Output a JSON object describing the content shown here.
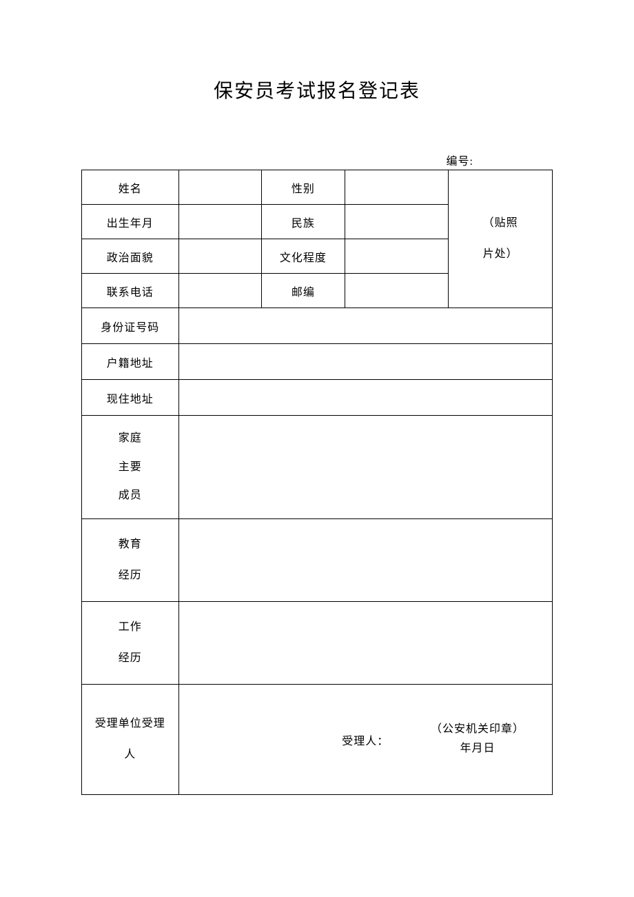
{
  "title": "保安员考试报名登记表",
  "serial_label": "编号:",
  "labels": {
    "name": "姓名",
    "gender": "性别",
    "birth": "出生年月",
    "ethnicity": "民族",
    "political": "政治面貌",
    "education": "文化程度",
    "phone": "联系电话",
    "zip": "邮编",
    "id_number": "身份证号码",
    "household": "户籍地址",
    "current_addr": "现住地址",
    "family_l1": "家庭",
    "family_l2": "主要",
    "family_l3": "成员",
    "edu_l1": "教育",
    "edu_l2": "经历",
    "work_l1": "工作",
    "work_l2": "经历",
    "accept_l1": "受理单位受理",
    "accept_l2": "人",
    "photo_l1": "（贴照",
    "photo_l2": "片处）"
  },
  "accept": {
    "receiver_label": "受理人：",
    "stamp": "（公安机关印章）",
    "date": "年月日"
  },
  "style": {
    "page_bg": "#ffffff",
    "border_color": "#000000",
    "title_fontsize": 28,
    "body_fontsize": 16
  }
}
